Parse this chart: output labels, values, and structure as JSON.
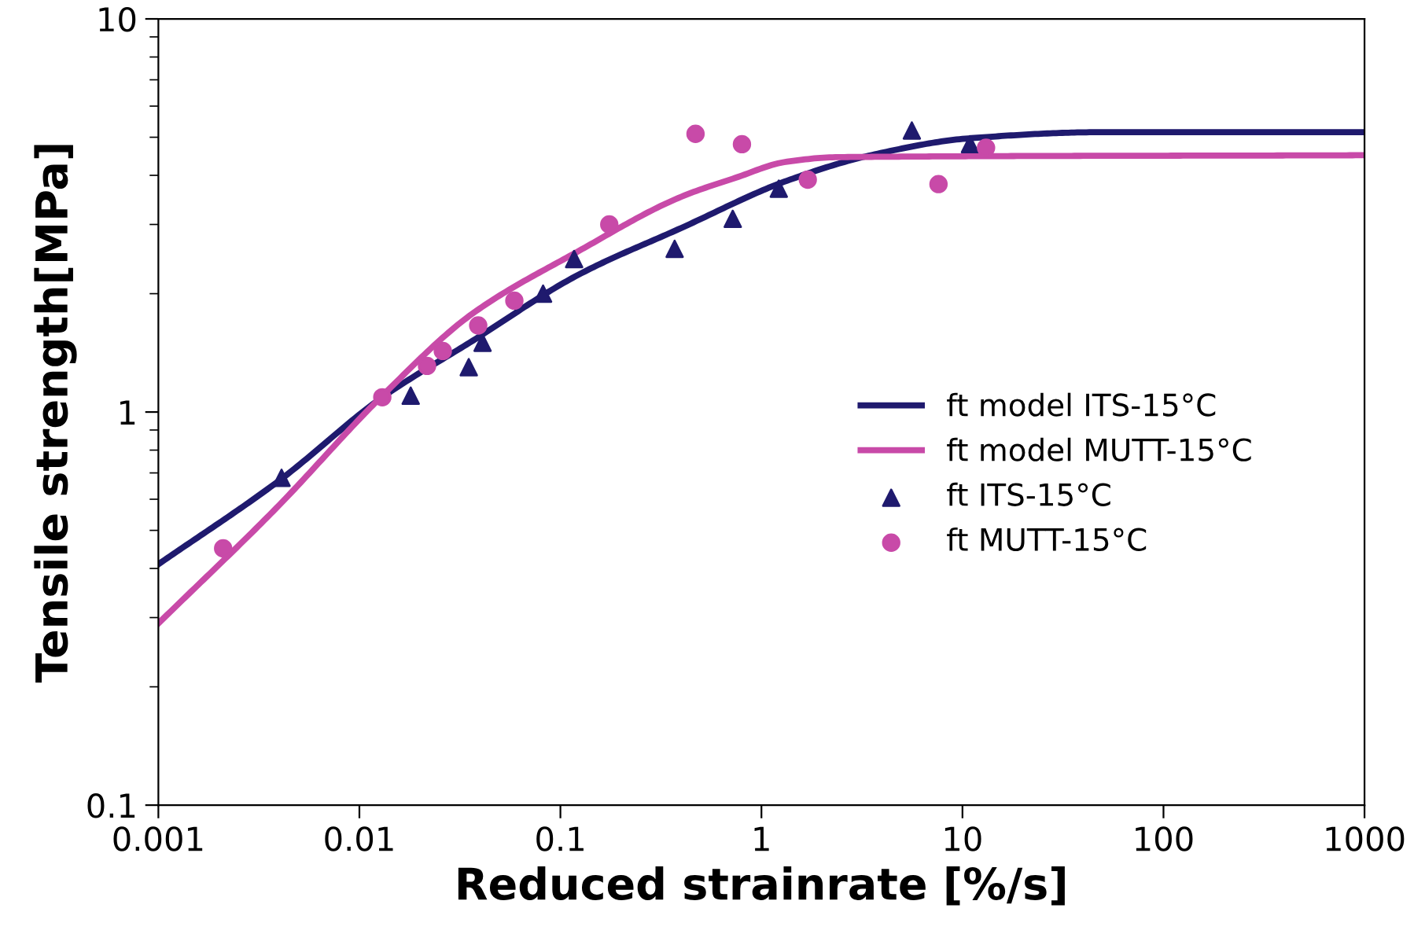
{
  "chart_data": {
    "type": "line",
    "xlabel": "Reduced strainrate [%/s]",
    "ylabel": "Tensile strength[MPa]",
    "log": "xy",
    "xlim": [
      0.001,
      1000
    ],
    "ylim": [
      0.1,
      10
    ],
    "xticks": [
      0.001,
      0.01,
      0.1,
      1,
      10,
      100,
      1000
    ],
    "yticks": [
      0.1,
      1,
      10
    ],
    "grid": false,
    "legend": "right",
    "series": [
      {
        "name": "ft model ITS-15°C",
        "marker": "none",
        "color": "#1f1a6e",
        "x": [
          0.001,
          0.004,
          0.013,
          0.036,
          0.122,
          0.4,
          1.33,
          3.5,
          10.9,
          49,
          1000
        ],
        "values": [
          0.41,
          0.67,
          1.09,
          1.51,
          2.23,
          2.94,
          3.87,
          4.5,
          4.97,
          5.15,
          5.15
        ]
      },
      {
        "name": "ft model MUTT-15°C",
        "marker": "none",
        "color": "#c84aa8",
        "x": [
          0.001,
          0.0038,
          0.013,
          0.036,
          0.122,
          0.4,
          0.74,
          1.33,
          2.4,
          1000
        ],
        "values": [
          0.29,
          0.565,
          1.1,
          1.77,
          2.56,
          3.53,
          3.94,
          4.33,
          4.45,
          4.5
        ]
      },
      {
        "name": "ft ITS-15°C",
        "type": "scatter",
        "marker": "triangle",
        "color": "#1f1a6e",
        "x": [
          0.0041,
          0.018,
          0.035,
          0.041,
          0.082,
          0.117,
          0.37,
          0.72,
          1.22,
          5.6,
          10.9
        ],
        "values": [
          0.68,
          1.1,
          1.3,
          1.5,
          2.0,
          2.45,
          2.6,
          3.1,
          3.7,
          5.2,
          4.8
        ]
      },
      {
        "name": "ft MUTT-15°C",
        "type": "scatter",
        "marker": "circle",
        "color": "#c84aa8",
        "x": [
          0.0021,
          0.013,
          0.0217,
          0.026,
          0.039,
          0.059,
          0.175,
          0.47,
          0.8,
          1.7,
          7.6,
          13.1
        ],
        "values": [
          0.45,
          1.09,
          1.31,
          1.43,
          1.66,
          1.92,
          3.0,
          5.1,
          4.8,
          3.9,
          3.8,
          4.7
        ]
      }
    ]
  }
}
